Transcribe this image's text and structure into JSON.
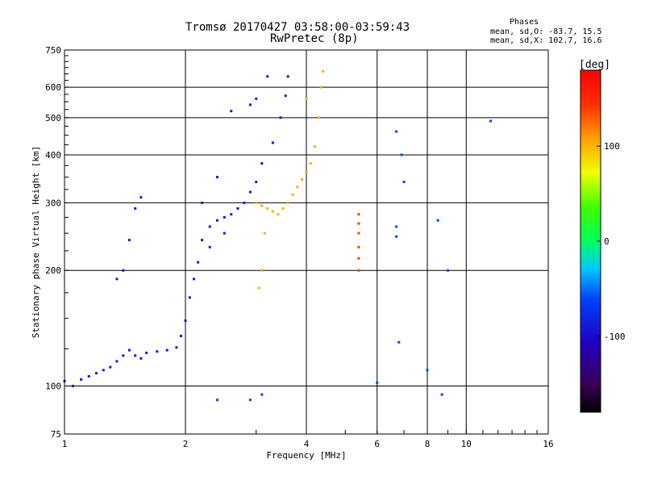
{
  "header": {
    "title": "Tromsø 20170427 03:58:00-03:59:43",
    "subtitle": "RwPretec (8p)",
    "phases_heading": "Phases",
    "phase_o": "mean, sd,O: -83.7, 15.5",
    "phase_x": "mean, sd,X: 102.7, 16.6"
  },
  "chart_data": {
    "type": "scatter",
    "title": "Tromsø 20170427 03:58:00-03:59:43",
    "subtitle": "RwPretec (8p)",
    "xlabel": "Frequency [MHz]",
    "ylabel": "Stationary phase Virtual Height [km]",
    "xscale": "log",
    "yscale": "log",
    "xlim": [
      1,
      16
    ],
    "ylim": [
      75,
      750
    ],
    "xticks": [
      1,
      2,
      4,
      6,
      8,
      10,
      16
    ],
    "yticks": [
      75,
      100,
      200,
      300,
      400,
      500,
      600,
      750
    ],
    "grid": true,
    "colorbar": {
      "label": "[deg]",
      "range": [
        -180,
        180
      ],
      "ticks": [
        -100,
        0,
        100
      ],
      "colormap": "rainbow"
    },
    "series": [
      {
        "trace": "O-mode echo cluster, 1.0-3.6 MHz",
        "phase_deg": -90,
        "points": [
          [
            1.0,
            103
          ],
          [
            1.05,
            100
          ],
          [
            1.1,
            104
          ],
          [
            1.15,
            106
          ],
          [
            1.2,
            108
          ],
          [
            1.25,
            110
          ],
          [
            1.3,
            112
          ],
          [
            1.35,
            116
          ],
          [
            1.4,
            120
          ],
          [
            1.45,
            124
          ],
          [
            1.5,
            120
          ],
          [
            1.55,
            118
          ],
          [
            1.6,
            122
          ],
          [
            1.7,
            123
          ],
          [
            1.8,
            124
          ],
          [
            1.9,
            126
          ],
          [
            1.95,
            135
          ],
          [
            2.0,
            148
          ],
          [
            2.05,
            170
          ],
          [
            2.1,
            190
          ],
          [
            2.15,
            210
          ],
          [
            2.2,
            240
          ],
          [
            2.3,
            260
          ],
          [
            2.4,
            270
          ],
          [
            2.5,
            275
          ],
          [
            2.6,
            280
          ],
          [
            2.7,
            290
          ],
          [
            2.8,
            300
          ],
          [
            2.9,
            320
          ],
          [
            3.0,
            340
          ],
          [
            3.1,
            380
          ],
          [
            3.3,
            430
          ],
          [
            3.45,
            500
          ],
          [
            3.55,
            570
          ],
          [
            3.6,
            640
          ],
          [
            3.2,
            640
          ],
          [
            3.0,
            560
          ],
          [
            2.9,
            540
          ],
          [
            2.6,
            520
          ],
          [
            1.55,
            310
          ],
          [
            1.5,
            290
          ],
          [
            1.45,
            240
          ],
          [
            1.4,
            200
          ],
          [
            1.35,
            190
          ],
          [
            2.2,
            300
          ],
          [
            2.3,
            230
          ],
          [
            2.4,
            350
          ],
          [
            2.5,
            250
          ]
        ]
      },
      {
        "trace": "X-mode echo trace, 3.0-4.3 MHz",
        "phase_deg": 103,
        "points": [
          [
            3.0,
            300
          ],
          [
            3.1,
            295
          ],
          [
            3.2,
            290
          ],
          [
            3.3,
            285
          ],
          [
            3.4,
            280
          ],
          [
            3.5,
            290
          ],
          [
            3.6,
            300
          ],
          [
            3.7,
            315
          ],
          [
            3.8,
            330
          ],
          [
            3.9,
            345
          ],
          [
            4.0,
            360
          ],
          [
            4.1,
            380
          ],
          [
            4.2,
            420
          ],
          [
            4.3,
            500
          ],
          [
            4.35,
            600
          ],
          [
            4.4,
            660
          ],
          [
            4.0,
            560
          ],
          [
            3.1,
            200
          ],
          [
            3.05,
            180
          ],
          [
            3.15,
            250
          ]
        ]
      },
      {
        "trace": "X-mode column near 5.4 MHz",
        "phase_deg": 140,
        "points": [
          [
            5.4,
            200
          ],
          [
            5.4,
            215
          ],
          [
            5.4,
            230
          ],
          [
            5.4,
            250
          ],
          [
            5.4,
            265
          ],
          [
            5.4,
            280
          ]
        ]
      },
      {
        "trace": "scattered echoes",
        "phase_deg": -60,
        "points": [
          [
            6.7,
            460
          ],
          [
            6.9,
            400
          ],
          [
            6.7,
            260
          ],
          [
            6.7,
            245
          ],
          [
            6.8,
            130
          ],
          [
            8.0,
            110
          ],
          [
            8.5,
            270
          ],
          [
            9.0,
            200
          ],
          [
            11.5,
            490
          ],
          [
            7.0,
            340
          ],
          [
            8.7,
            95
          ],
          [
            6.0,
            102
          ],
          [
            2.9,
            92
          ],
          [
            3.1,
            95
          ],
          [
            2.4,
            92
          ]
        ]
      }
    ]
  },
  "axes": {
    "x_title": "Frequency [MHz]",
    "y_title": "Stationary phase Virtual Height [km]",
    "x_tick_labels": [
      "1",
      "2",
      "4",
      "6",
      "8",
      "10",
      "16"
    ],
    "y_tick_labels": [
      "75",
      "100",
      "200",
      "300",
      "400",
      "500",
      "600",
      "750"
    ]
  },
  "colorbar": {
    "label": "[deg]",
    "tick_labels": [
      "100",
      "0",
      "-100"
    ]
  }
}
